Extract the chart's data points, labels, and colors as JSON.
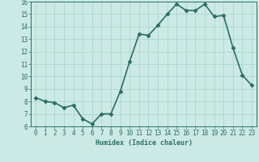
{
  "x": [
    0,
    1,
    2,
    3,
    4,
    5,
    6,
    7,
    8,
    9,
    10,
    11,
    12,
    13,
    14,
    15,
    16,
    17,
    18,
    19,
    20,
    21,
    22,
    23
  ],
  "y": [
    8.3,
    8.0,
    7.9,
    7.5,
    7.7,
    6.6,
    6.2,
    7.0,
    7.0,
    8.8,
    11.2,
    13.4,
    13.3,
    14.1,
    15.0,
    15.8,
    15.3,
    15.3,
    15.8,
    14.8,
    14.9,
    12.3,
    10.1,
    9.3
  ],
  "line_color": "#2a6e62",
  "marker": "D",
  "marker_size": 2.5,
  "bg_color": "#cceae5",
  "grid_color": "#b0d8d2",
  "xlabel": "Humidex (Indice chaleur)",
  "ylim": [
    6,
    16
  ],
  "xlim_min": -0.5,
  "xlim_max": 23.5,
  "yticks": [
    6,
    7,
    8,
    9,
    10,
    11,
    12,
    13,
    14,
    15,
    16
  ],
  "xticks": [
    0,
    1,
    2,
    3,
    4,
    5,
    6,
    7,
    8,
    9,
    10,
    11,
    12,
    13,
    14,
    15,
    16,
    17,
    18,
    19,
    20,
    21,
    22,
    23
  ],
  "tick_color": "#2a6e62",
  "label_fontsize": 5.5,
  "axis_fontsize": 6.0,
  "line_width": 1.2
}
